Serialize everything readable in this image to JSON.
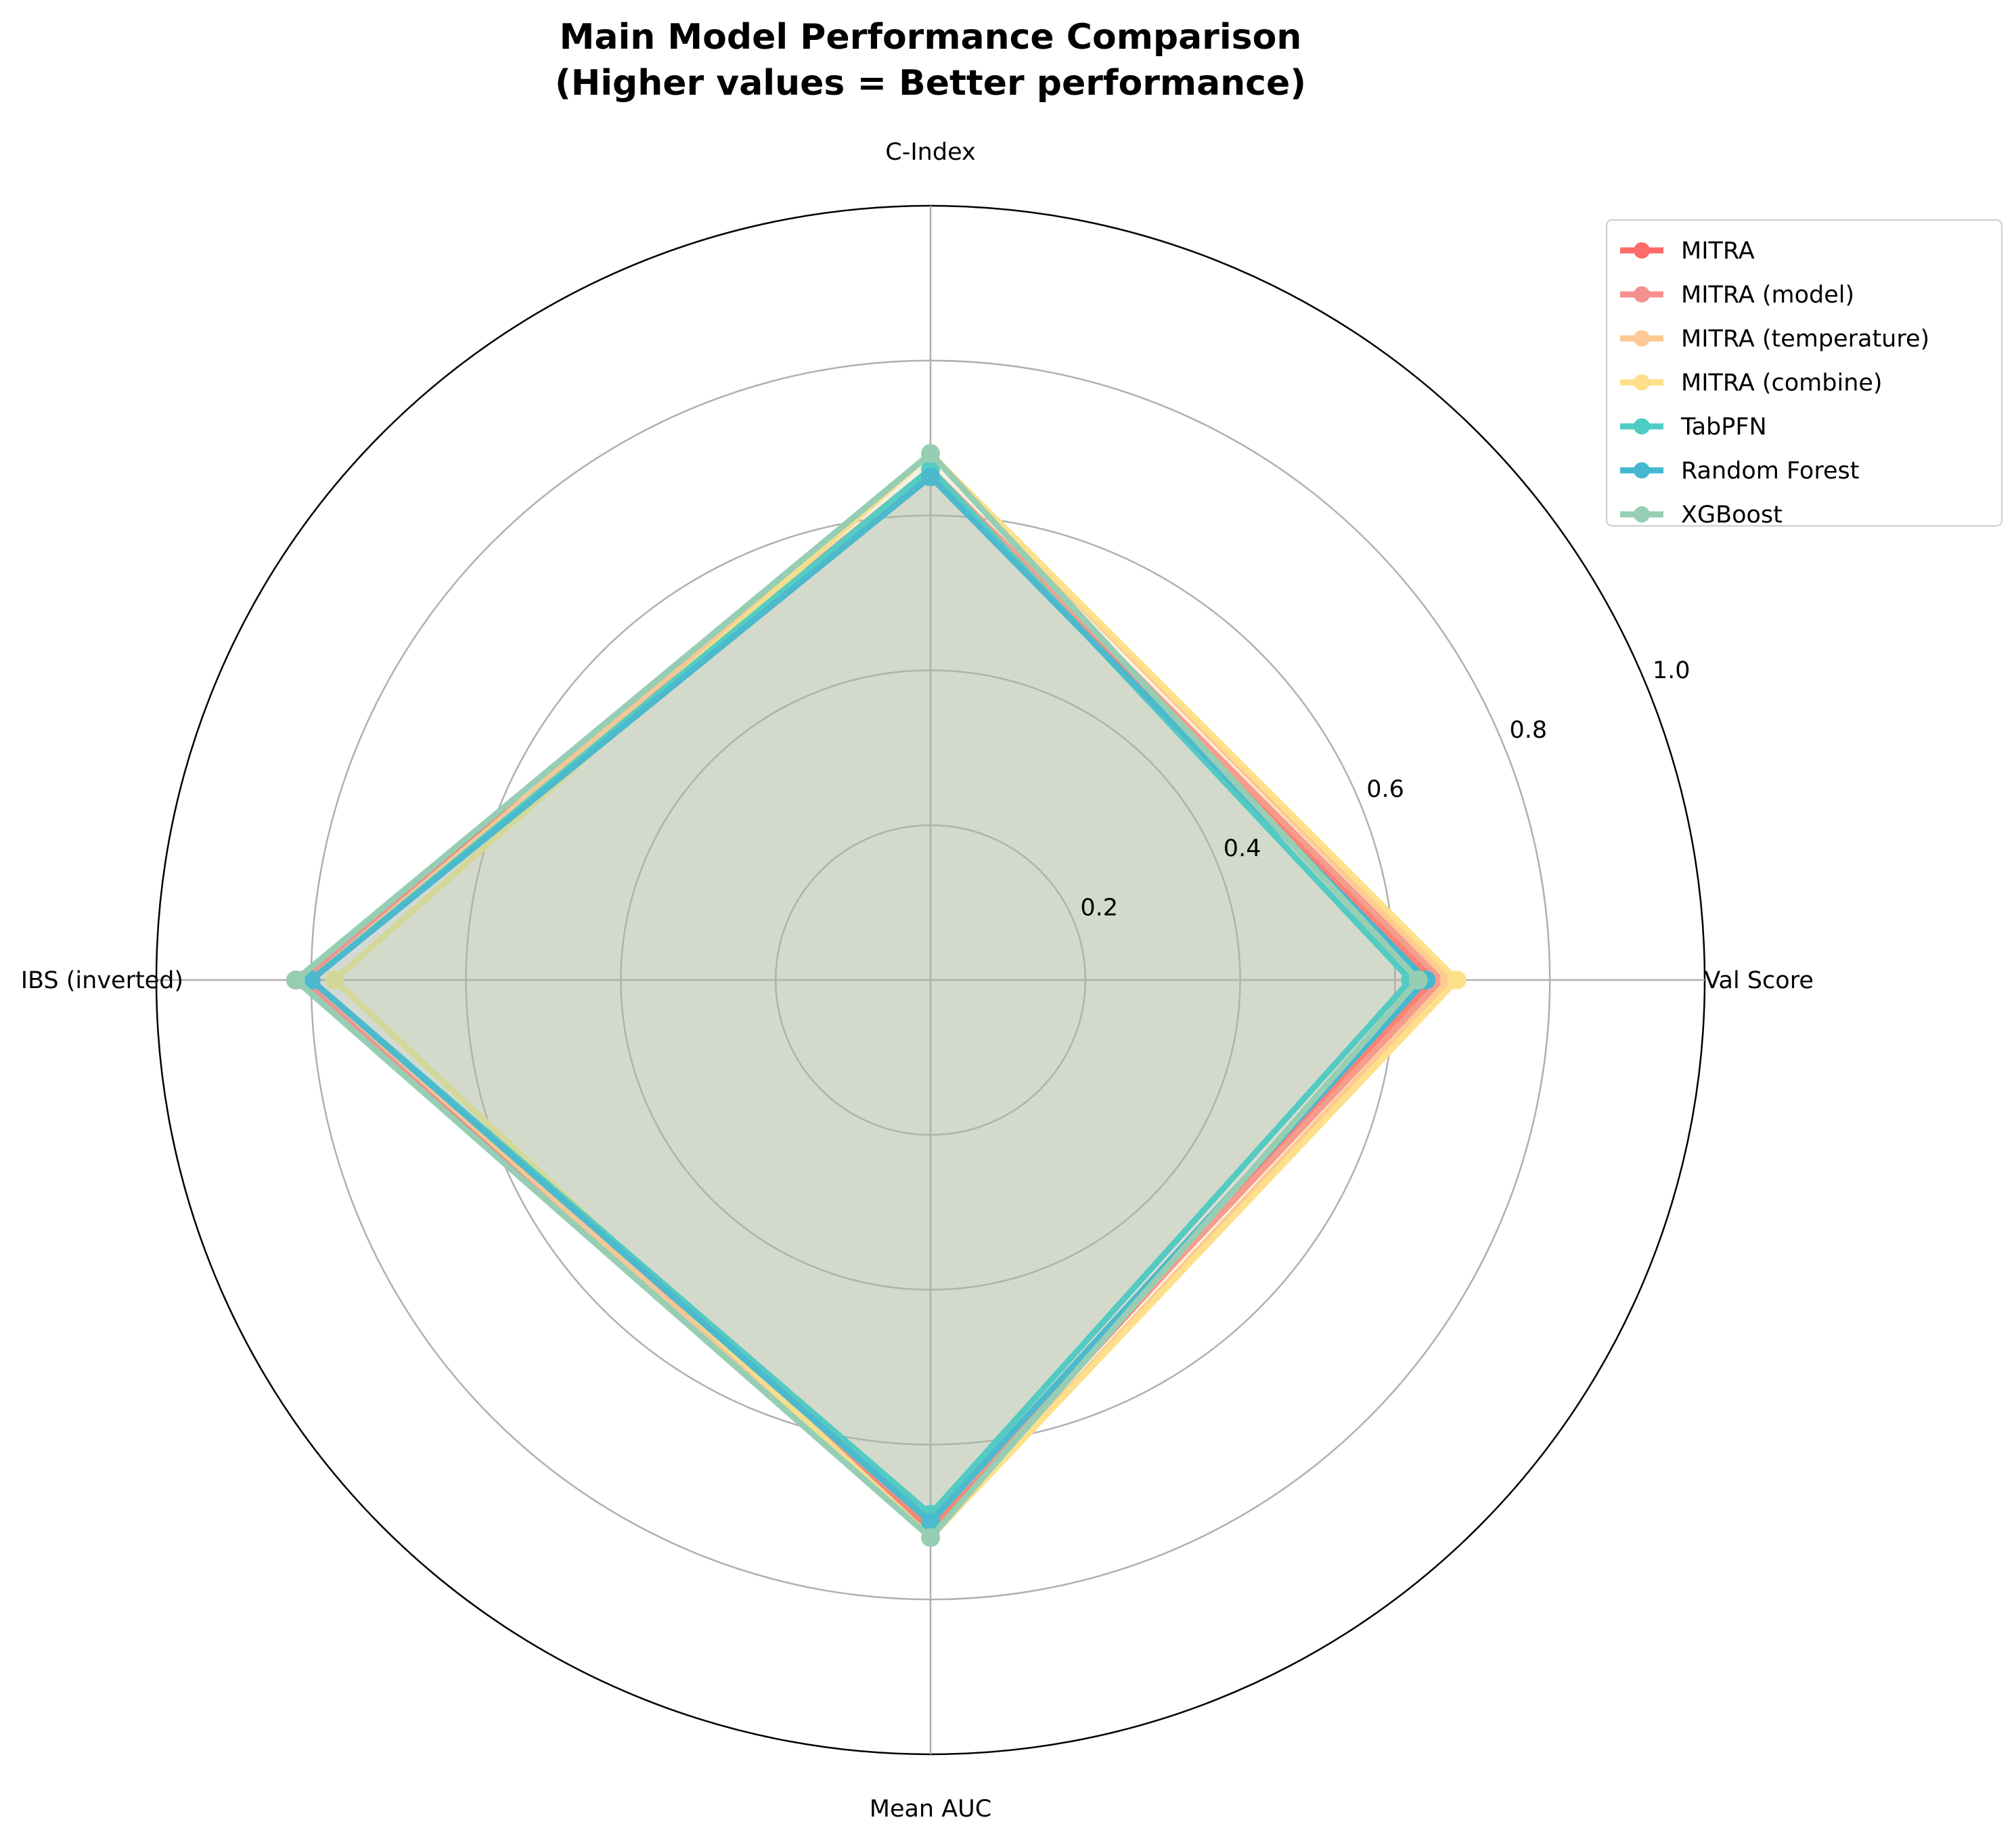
{
  "chart_data": {
    "type": "radar",
    "title_lines": [
      "Main Model Performance Comparison",
      "(Higher values = Better performance)"
    ],
    "axes": [
      "C-Index",
      "Val Score",
      "Mean AUC",
      "IBS (inverted)"
    ],
    "rlim": [
      0,
      1.0
    ],
    "rticks": [
      0.2,
      0.4,
      0.6,
      0.8,
      1.0
    ],
    "rtick_labels": [
      "0.2",
      "0.4",
      "0.6",
      "0.8",
      "1.0"
    ],
    "grid": true,
    "legend_position": "top-right outside",
    "series": [
      {
        "name": "MITRA",
        "color": "#ff6b6b",
        "values": [
          0.65,
          0.65,
          0.71,
          0.82
        ]
      },
      {
        "name": "MITRA (model)",
        "color": "#f4908e",
        "values": [
          0.66,
          0.66,
          0.7,
          0.81
        ]
      },
      {
        "name": "MITRA (temperature)",
        "color": "#fdc894",
        "values": [
          0.68,
          0.67,
          0.72,
          0.8
        ]
      },
      {
        "name": "MITRA (combine)",
        "color": "#fee08b",
        "values": [
          0.68,
          0.68,
          0.72,
          0.77
        ]
      },
      {
        "name": "TabPFN",
        "color": "#4ecdc4",
        "values": [
          0.66,
          0.62,
          0.69,
          0.8
        ]
      },
      {
        "name": "Random Forest",
        "color": "#45b7d1",
        "values": [
          0.65,
          0.64,
          0.7,
          0.8
        ]
      },
      {
        "name": "XGBoost",
        "color": "#96ceb4",
        "values": [
          0.68,
          0.63,
          0.72,
          0.82
        ]
      }
    ]
  }
}
